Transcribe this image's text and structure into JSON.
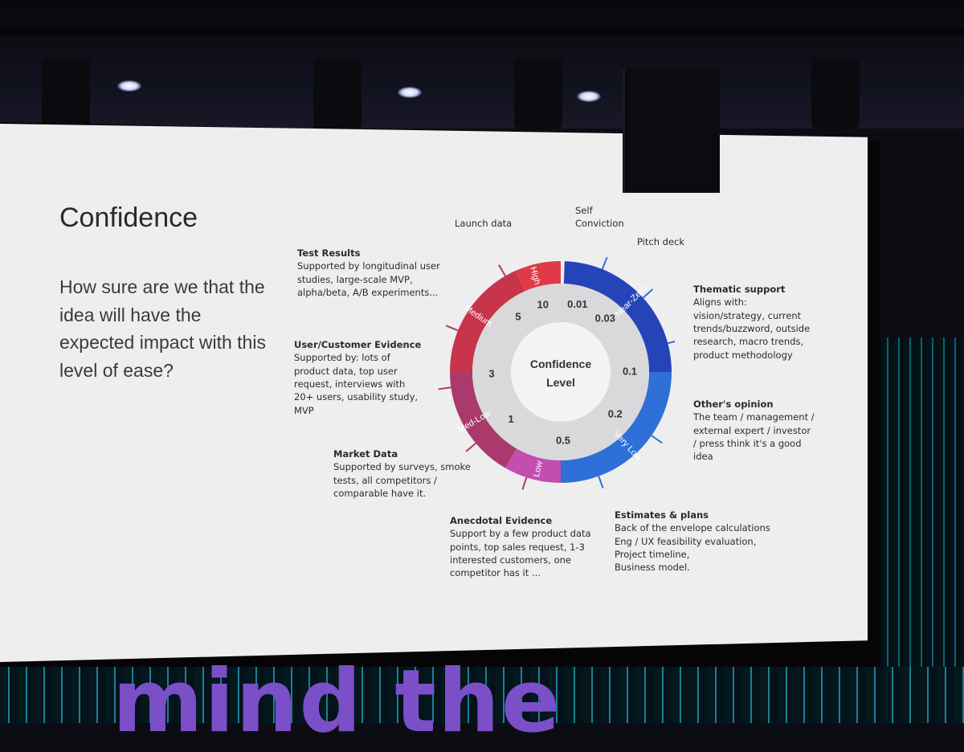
{
  "slide": {
    "title": "Confidence",
    "question": "How sure are we that the idea will have the expected impact with this level of ease?"
  },
  "stage_sign": "mind the",
  "gauge": {
    "center_label": "Confidence\nLevel",
    "tiers": [
      {
        "name": "High",
        "color": "#e03a47"
      },
      {
        "name": "Medium",
        "color": "#c8344a"
      },
      {
        "name": "Med-Low",
        "color": "#aa3a6c"
      },
      {
        "name": "Low",
        "color": "#c24fb0"
      },
      {
        "name": "Very Low",
        "color": "#2f6fd8"
      },
      {
        "name": "Near-Zero",
        "color": "#2544b8"
      }
    ],
    "values": [
      "10",
      "0.01",
      "0.03",
      "0.1",
      "0.2",
      "0.5",
      "1",
      "3",
      "5"
    ]
  },
  "sources": {
    "launch_data": {
      "title": "Launch data"
    },
    "self_conviction": {
      "title": "Self\nConviction"
    },
    "pitch_deck": {
      "title": "Pitch deck"
    },
    "thematic": {
      "title": "Thematic support",
      "body": "Aligns with:\nvision/strategy, current\ntrends/buzzword, outside\nresearch, macro trends,\nproduct methodology"
    },
    "others_opinion": {
      "title": "Other's opinion",
      "body": "The team / management /\nexternal expert / investor\n/ press think it's a good\nidea"
    },
    "estimates": {
      "title": "Estimates & plans",
      "body": "Back of the envelope calculations\nEng / UX feasibility evaluation,\nProject timeline,\nBusiness model."
    },
    "anecdotal": {
      "title": "Anecdotal Evidence",
      "body": "Support by a few product data\npoints, top sales request, 1-3\ninterested customers, one\ncompetitor has it ..."
    },
    "market": {
      "title": "Market Data",
      "body": "Supported by surveys, smoke\ntests, all competitors /\ncomparable have it."
    },
    "user_evidence": {
      "title": "User/Customer Evidence",
      "body": "Supported by: lots of\nproduct data, top user\nrequest, interviews with\n20+ users, usability study,\nMVP"
    },
    "test_results": {
      "title": "Test Results",
      "body": "Supported by longitudinal user\nstudies, large-scale MVP,\nalpha/beta, A/B experiments..."
    }
  }
}
